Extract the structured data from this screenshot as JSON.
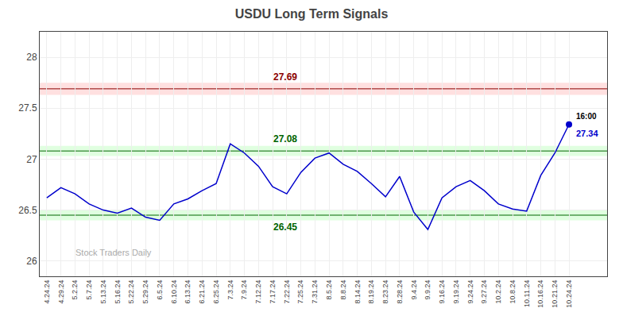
{
  "chart_data": {
    "type": "line",
    "title": "USDU Long Term Signals",
    "categories": [
      "4.24.24",
      "4.29.24",
      "5.2.24",
      "5.7.24",
      "5.13.24",
      "5.16.24",
      "5.22.24",
      "5.29.24",
      "6.5.24",
      "6.10.24",
      "6.13.24",
      "6.21.24",
      "6.25.24",
      "7.3.24",
      "7.9.24",
      "7.12.24",
      "7.17.24",
      "7.22.24",
      "7.25.24",
      "7.31.24",
      "8.5.24",
      "8.8.24",
      "8.14.24",
      "8.19.24",
      "8.23.24",
      "8.28.24",
      "9.4.24",
      "9.9.24",
      "9.16.24",
      "9.19.24",
      "9.24.24",
      "9.27.24",
      "10.2.24",
      "10.8.24",
      "10.11.24",
      "10.16.24",
      "10.21.24",
      "10.24.24"
    ],
    "values": [
      26.62,
      26.72,
      26.66,
      26.56,
      26.5,
      26.47,
      26.52,
      26.43,
      26.4,
      26.56,
      26.61,
      26.69,
      26.76,
      27.15,
      27.06,
      26.93,
      26.73,
      26.66,
      26.87,
      27.01,
      27.06,
      26.95,
      26.88,
      26.76,
      26.63,
      26.83,
      26.48,
      26.31,
      26.62,
      26.73,
      26.79,
      26.69,
      26.56,
      26.51,
      26.49,
      26.84,
      27.06,
      27.34
    ],
    "color": "#0000cc",
    "ylim": [
      25.85,
      28.25
    ],
    "yticks": [
      26,
      26.5,
      27,
      27.5,
      28
    ],
    "grid": true,
    "levels": [
      {
        "value": 27.69,
        "label": "27.69",
        "color": "#8b0000",
        "band": [
          27.63,
          27.75
        ],
        "band_color": "#ffcccc",
        "label_position": "above"
      },
      {
        "value": 27.08,
        "label": "27.08",
        "color": "#006400",
        "band": [
          27.03,
          27.13
        ],
        "band_color": "#ccffcc",
        "label_position": "above"
      },
      {
        "value": 26.45,
        "label": "26.45",
        "color": "#006400",
        "band": [
          26.4,
          26.5
        ],
        "band_color": "#ccffcc",
        "label_position": "below"
      }
    ],
    "current": {
      "value": 27.34,
      "label": "27.34",
      "time": "16:00",
      "color": "#0000cc",
      "marker": "circle"
    },
    "watermark": "Stock Traders Daily",
    "watermark_color": "#aaaaaa"
  }
}
